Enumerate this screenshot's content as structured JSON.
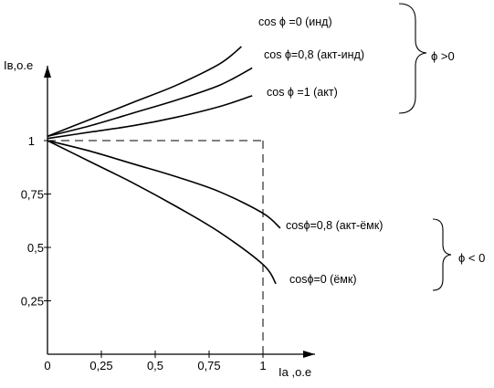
{
  "chart_data": {
    "type": "line",
    "xlabel": "Iа ,о.е",
    "ylabel": "Iв,о.е",
    "xlim": [
      0,
      1.25
    ],
    "ylim": [
      0,
      1.45
    ],
    "x_ticks": [
      "0",
      "0,25",
      "0,5",
      "0,75",
      "1"
    ],
    "x_tick_values": [
      0,
      0.25,
      0.5,
      0.75,
      1.0
    ],
    "y_ticks": [
      "0,25",
      "0,5",
      "0,75",
      "1"
    ],
    "y_tick_values": [
      0.25,
      0.5,
      0.75,
      1.0
    ],
    "reference_point": {
      "x": 1.0,
      "y": 1.0
    },
    "series": [
      {
        "name": "cos ϕ =0 (инд)",
        "x": [
          0,
          0.2,
          0.4,
          0.6,
          0.8,
          0.9
        ],
        "y": [
          1.02,
          1.1,
          1.18,
          1.26,
          1.36,
          1.44
        ]
      },
      {
        "name": "cos ϕ=0,8 (акт-инд)",
        "x": [
          0,
          0.2,
          0.4,
          0.6,
          0.8,
          0.95
        ],
        "y": [
          1.02,
          1.07,
          1.13,
          1.19,
          1.26,
          1.34
        ]
      },
      {
        "name": "cos ϕ =1 (акт)",
        "x": [
          0,
          0.2,
          0.4,
          0.6,
          0.8,
          0.95
        ],
        "y": [
          1.01,
          1.04,
          1.07,
          1.11,
          1.16,
          1.21
        ]
      },
      {
        "name": "cosϕ=0,8 (акт-ёмк)",
        "x": [
          0,
          0.2,
          0.4,
          0.6,
          0.8,
          1.0,
          1.08
        ],
        "y": [
          1.0,
          0.95,
          0.89,
          0.83,
          0.76,
          0.66,
          0.59
        ]
      },
      {
        "name": "cosϕ=0 (ёмк)",
        "x": [
          0,
          0.2,
          0.4,
          0.6,
          0.8,
          1.0,
          1.06
        ],
        "y": [
          1.0,
          0.9,
          0.8,
          0.69,
          0.57,
          0.42,
          0.33
        ]
      }
    ],
    "groups": [
      {
        "label": "ϕ >0"
      },
      {
        "label": "ϕ < 0"
      }
    ]
  }
}
